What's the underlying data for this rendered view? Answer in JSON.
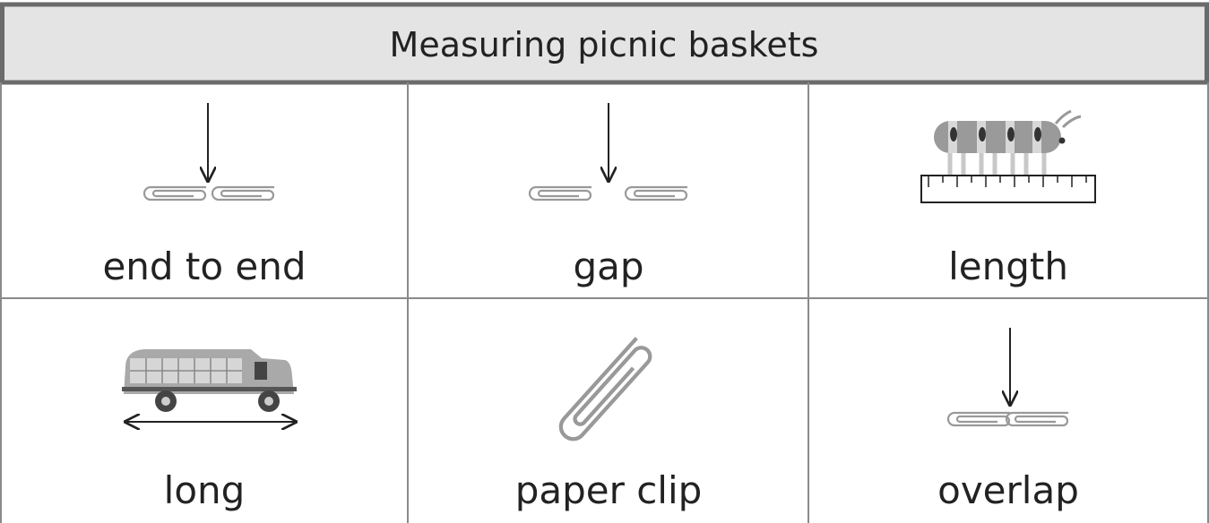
{
  "header": {
    "title": "Measuring picnic baskets"
  },
  "cells": [
    {
      "label": "end to end"
    },
    {
      "label": "gap"
    },
    {
      "label": "length"
    },
    {
      "label": "long"
    },
    {
      "label": "paper clip"
    },
    {
      "label": "overlap"
    }
  ]
}
